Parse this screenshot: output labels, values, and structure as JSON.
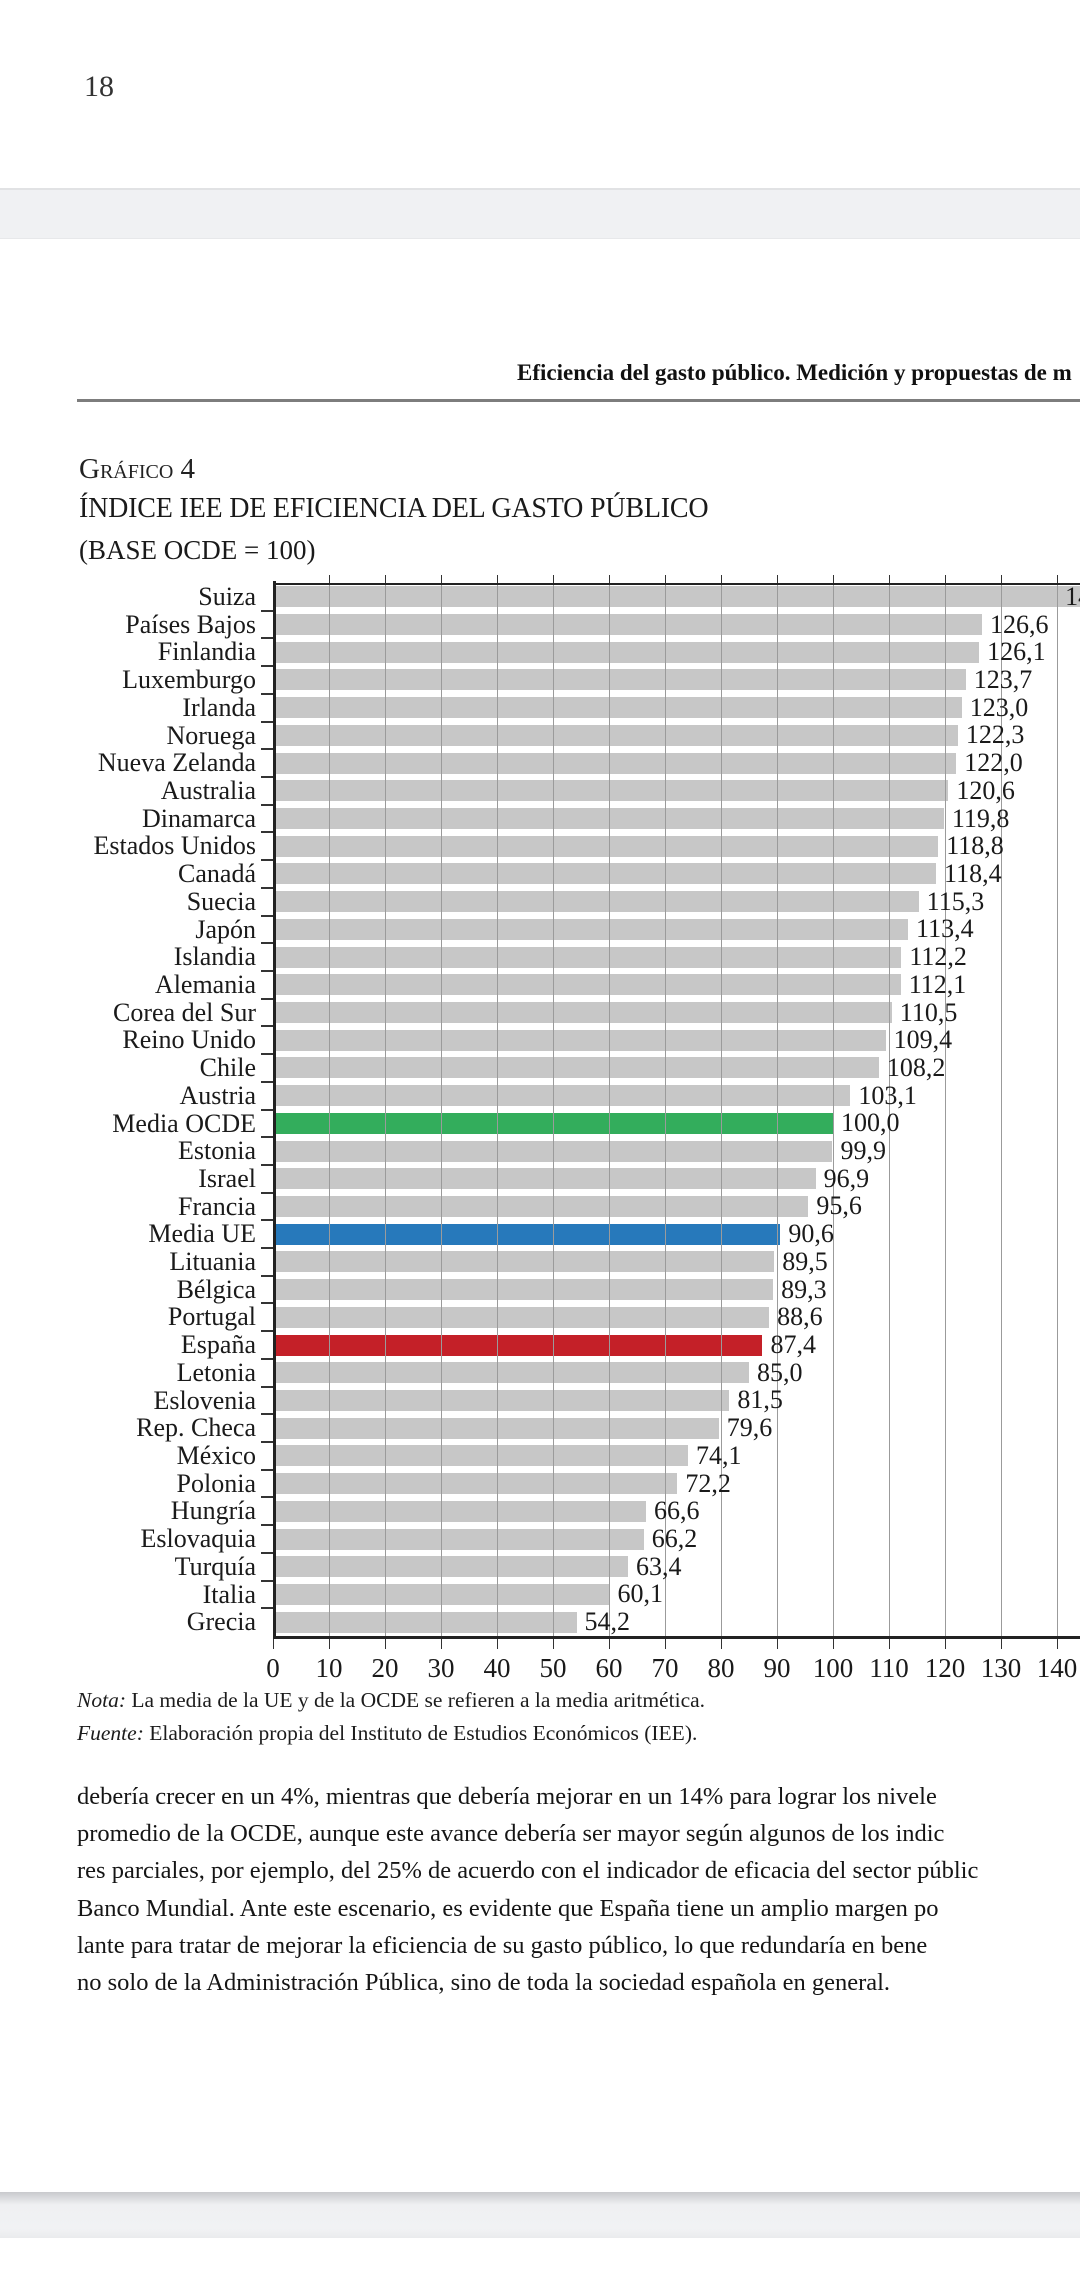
{
  "page": {
    "prev_page_number": "18",
    "running_header": "Eficiencia del gasto público. Medición y propuestas de m",
    "figure_label": "Gráfico 4",
    "nota_label": "Nota:",
    "nota_text": " La media de la UE y de la OCDE se refieren a la media aritmética.",
    "fuente_label": "Fuente:",
    "fuente_text": " Elaboración propia del Instituto de Estudios Económicos (IEE).",
    "body_lines": [
      "debería crecer en un 4%, mientras que debería mejorar en un 14% para lograr los nivele",
      "promedio de la OCDE, aunque este avance debería ser mayor según algunos de los indic",
      "res parciales, por ejemplo, del 25% de acuerdo con el indicador de eficacia del sector públic",
      "Banco Mundial. Ante este escenario, es evidente que España tiene un amplio margen po",
      "lante para tratar de mejorar la eficiencia de su gasto público, lo que redundaría en bene",
      "no solo de la Administración Pública, sino de toda la sociedad española en general."
    ]
  },
  "colors": {
    "bar_default": "#c7c7c7",
    "bar_ocde": "#33ad5c",
    "bar_ue": "#2779bb",
    "bar_espana": "#c42028",
    "axis": "#222222",
    "gridline": "#9b9b9b"
  },
  "chart_data": {
    "type": "bar",
    "orientation": "horizontal",
    "title": "ÍNDICE IEE DE EFICIENCIA DEL GASTO PÚBLICO",
    "subtitle": "(BASE OCDE = 100)",
    "xlabel": "",
    "ylabel": "",
    "xlim": [
      0,
      145
    ],
    "grid": "vertical gridlines every 10 units, drawn over the bars",
    "legend": "none",
    "plot_max_visible_units": 145,
    "x_ticks": [
      "0",
      "10",
      "20",
      "30",
      "40",
      "50",
      "60",
      "70",
      "80",
      "90",
      "100",
      "110",
      "120",
      "130",
      "140"
    ],
    "rows": [
      {
        "label": "Suiza",
        "value": null,
        "value_label": "14",
        "value_label_truncated": true,
        "bar_overflows_plot": true,
        "color": "default"
      },
      {
        "label": "Países Bajos",
        "value": 126.6,
        "value_label": "126,6",
        "color": "default"
      },
      {
        "label": "Finlandia",
        "value": 126.1,
        "value_label": "126,1",
        "color": "default"
      },
      {
        "label": "Luxemburgo",
        "value": 123.7,
        "value_label": "123,7",
        "color": "default"
      },
      {
        "label": "Irlanda",
        "value": 123.0,
        "value_label": "123,0",
        "color": "default"
      },
      {
        "label": "Noruega",
        "value": 122.3,
        "value_label": "122,3",
        "color": "default"
      },
      {
        "label": "Nueva Zelanda",
        "value": 122.0,
        "value_label": "122,0",
        "color": "default"
      },
      {
        "label": "Australia",
        "value": 120.6,
        "value_label": "120,6",
        "color": "default"
      },
      {
        "label": "Dinamarca",
        "value": 119.8,
        "value_label": "119,8",
        "color": "default"
      },
      {
        "label": "Estados Unidos",
        "value": 118.8,
        "value_label": "118,8",
        "color": "default"
      },
      {
        "label": "Canadá",
        "value": 118.4,
        "value_label": "118,4",
        "color": "default"
      },
      {
        "label": "Suecia",
        "value": 115.3,
        "value_label": "115,3",
        "color": "default"
      },
      {
        "label": "Japón",
        "value": 113.4,
        "value_label": "113,4",
        "color": "default"
      },
      {
        "label": "Islandia",
        "value": 112.2,
        "value_label": "112,2",
        "color": "default"
      },
      {
        "label": "Alemania",
        "value": 112.1,
        "value_label": "112,1",
        "color": "default"
      },
      {
        "label": "Corea del Sur",
        "value": 110.5,
        "value_label": "110,5",
        "color": "default"
      },
      {
        "label": "Reino Unido",
        "value": 109.4,
        "value_label": "109,4",
        "color": "default"
      },
      {
        "label": "Chile",
        "value": 108.2,
        "value_label": "108,2",
        "color": "default"
      },
      {
        "label": "Austria",
        "value": 103.1,
        "value_label": "103,1",
        "color": "default"
      },
      {
        "label": "Media OCDE",
        "value": 100.0,
        "value_label": "100,0",
        "color": "ocde"
      },
      {
        "label": "Estonia",
        "value": 99.9,
        "value_label": "99,9",
        "color": "default"
      },
      {
        "label": "Israel",
        "value": 96.9,
        "value_label": "96,9",
        "color": "default"
      },
      {
        "label": "Francia",
        "value": 95.6,
        "value_label": "95,6",
        "color": "default"
      },
      {
        "label": "Media UE",
        "value": 90.6,
        "value_label": "90,6",
        "color": "ue"
      },
      {
        "label": "Lituania",
        "value": 89.5,
        "value_label": "89,5",
        "color": "default"
      },
      {
        "label": "Bélgica",
        "value": 89.3,
        "value_label": "89,3",
        "color": "default"
      },
      {
        "label": "Portugal",
        "value": 88.6,
        "value_label": "88,6",
        "color": "default"
      },
      {
        "label": "España",
        "value": 87.4,
        "value_label": "87,4",
        "color": "espana"
      },
      {
        "label": "Letonia",
        "value": 85.0,
        "value_label": "85,0",
        "color": "default"
      },
      {
        "label": "Eslovenia",
        "value": 81.5,
        "value_label": "81,5",
        "color": "default"
      },
      {
        "label": "Rep. Checa",
        "value": 79.6,
        "value_label": "79,6",
        "color": "default"
      },
      {
        "label": "México",
        "value": 74.1,
        "value_label": "74,1",
        "color": "default"
      },
      {
        "label": "Polonia",
        "value": 72.2,
        "value_label": "72,2",
        "color": "default"
      },
      {
        "label": "Hungría",
        "value": 66.6,
        "value_label": "66,6",
        "color": "default"
      },
      {
        "label": "Eslovaquia",
        "value": 66.2,
        "value_label": "66,2",
        "color": "default"
      },
      {
        "label": "Turquía",
        "value": 63.4,
        "value_label": "63,4",
        "color": "default"
      },
      {
        "label": "Italia",
        "value": 60.1,
        "value_label": "60,1",
        "color": "default"
      },
      {
        "label": "Grecia",
        "value": 54.2,
        "value_label": "54,2",
        "color": "default"
      }
    ]
  }
}
